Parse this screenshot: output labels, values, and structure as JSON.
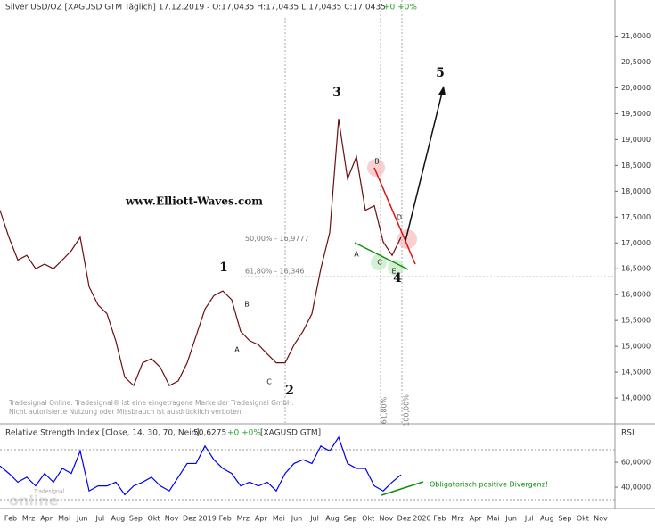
{
  "header": {
    "title": "Silver USD/OZ [XAGUSD GTM  Täglich] 17.12.2019 - O:17,0435 H:17,0435 L:17,0435 C:17,0435",
    "change": "+0 +0%"
  },
  "watermark": [
    "Tradesignal Online. Tradesignal® ist eine eingetragene Marke der Tradesignal GmbH.",
    "Nicht autorisierte Nutzung oder Missbrauch ist ausdrücklich verboten."
  ],
  "logo": [
    "Tradesignal",
    "online"
  ],
  "chart_data": [
    {
      "type": "line",
      "color": "#6b0f0f",
      "values": [
        17.63,
        17.11,
        16.67,
        16.76,
        16.5,
        16.59,
        16.5,
        16.67,
        16.85,
        17.11,
        16.15,
        15.8,
        15.63,
        15.1,
        14.4,
        14.24,
        14.68,
        14.76,
        14.59,
        14.24,
        14.33,
        14.68,
        15.2,
        15.72,
        15.98,
        16.07,
        15.9,
        15.29,
        15.11,
        15.03,
        14.85,
        14.68,
        14.68,
        15.03,
        15.29,
        15.63,
        16.5,
        17.2,
        19.4,
        18.24,
        18.67,
        17.63,
        17.72,
        17.02,
        16.76,
        17.11
      ],
      "ylim": [
        13.5,
        21.7
      ],
      "yticks": [
        {
          "value": 14,
          "label": "14,0000"
        },
        {
          "value": 14.5,
          "label": "14,5000"
        },
        {
          "value": 15,
          "label": "15,0000"
        },
        {
          "value": 15.5,
          "label": "15,5000"
        },
        {
          "value": 16,
          "label": "16,0000"
        },
        {
          "value": 16.5,
          "label": "16,5000"
        },
        {
          "value": 17,
          "label": "17,0000"
        },
        {
          "value": 17.5,
          "label": "17,5000"
        },
        {
          "value": 18,
          "label": "18,0000"
        },
        {
          "value": 18.5,
          "label": "18,5000"
        },
        {
          "value": 19,
          "label": "19,0000"
        },
        {
          "value": 19.5,
          "label": "19,5000"
        },
        {
          "value": 20,
          "label": "20,0000"
        },
        {
          "value": 20.5,
          "label": "20,5000"
        },
        {
          "value": 21,
          "label": "21,0000"
        }
      ],
      "levels": [
        {
          "value": 16.9777,
          "label": "50,00% - 16,9777"
        },
        {
          "value": 16.346,
          "label": "61,80% - 16,346"
        }
      ],
      "vertical_labels": [
        "61,80%",
        "100,00%"
      ],
      "annotations": [
        "www.Elliott-Waves.com",
        "1",
        "2",
        "3",
        "4",
        "5",
        "A",
        "B",
        "C",
        "A",
        "B",
        "C",
        "D",
        "E"
      ],
      "x_labels": [
        "Feb",
        "Mrz",
        "Apr",
        "Mai",
        "Jun",
        "Jul",
        "Aug",
        "Sep",
        "Okt",
        "Nov",
        "Dez",
        "2019",
        "Feb",
        "Mrz",
        "Apr",
        "Mai",
        "Jun",
        "Jul",
        "Aug",
        "Sep",
        "Okt",
        "Nov",
        "Dez",
        "2020",
        "Feb",
        "Mrz",
        "Apr",
        "Mai",
        "Jun",
        "Jul",
        "Aug",
        "Sep",
        "Okt",
        "Nov"
      ]
    },
    {
      "type": "line",
      "color": "#0000ee",
      "title": "Relative Strength Index [Close, 14, 30, 70, Nein]",
      "last": "50,6275",
      "change": "+0 +0%",
      "symbol": "[XAGUSD GTM]",
      "axis_label": "RSI",
      "values": [
        57,
        51,
        44,
        48,
        41,
        51,
        44,
        55,
        51,
        69,
        37,
        41,
        41,
        44,
        34,
        41,
        44,
        48,
        41,
        37,
        48,
        59,
        59,
        73,
        62,
        55,
        51,
        41,
        44,
        41,
        44,
        37,
        51,
        59,
        62,
        59,
        73,
        69,
        80,
        59,
        55,
        55,
        41,
        37,
        44,
        50
      ],
      "ylim": [
        24.3,
        88.6
      ],
      "yticks": [
        {
          "value": 40,
          "label": "40,0000"
        },
        {
          "value": 60,
          "label": "60,0000"
        }
      ],
      "levels": [
        30,
        70
      ],
      "annotation": "Obligatorisch positive Divergenz!"
    }
  ]
}
